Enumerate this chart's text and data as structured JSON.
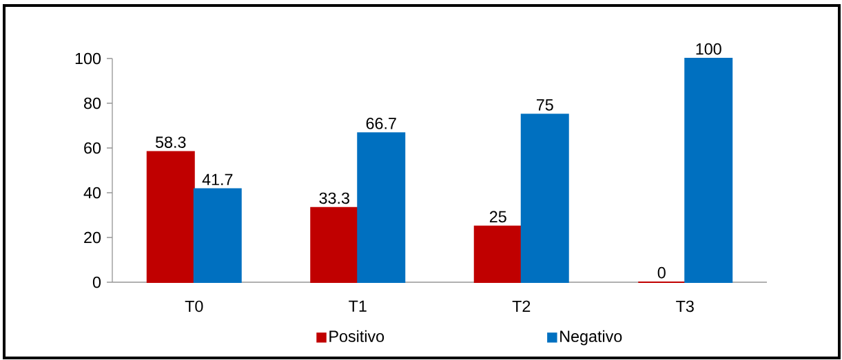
{
  "chart_data": {
    "type": "bar",
    "categories": [
      "T0",
      "T1",
      "T2",
      "T3"
    ],
    "series": [
      {
        "name": "Positivo",
        "color": "#c00000",
        "values": [
          58.3,
          33.3,
          25,
          0
        ]
      },
      {
        "name": "Negativo",
        "color": "#0070c0",
        "values": [
          41.7,
          66.7,
          75,
          100
        ]
      }
    ],
    "ylim": [
      0,
      100
    ],
    "yticks": [
      0,
      20,
      40,
      60,
      80,
      100
    ],
    "data_labels": true,
    "legend": "bottom"
  }
}
